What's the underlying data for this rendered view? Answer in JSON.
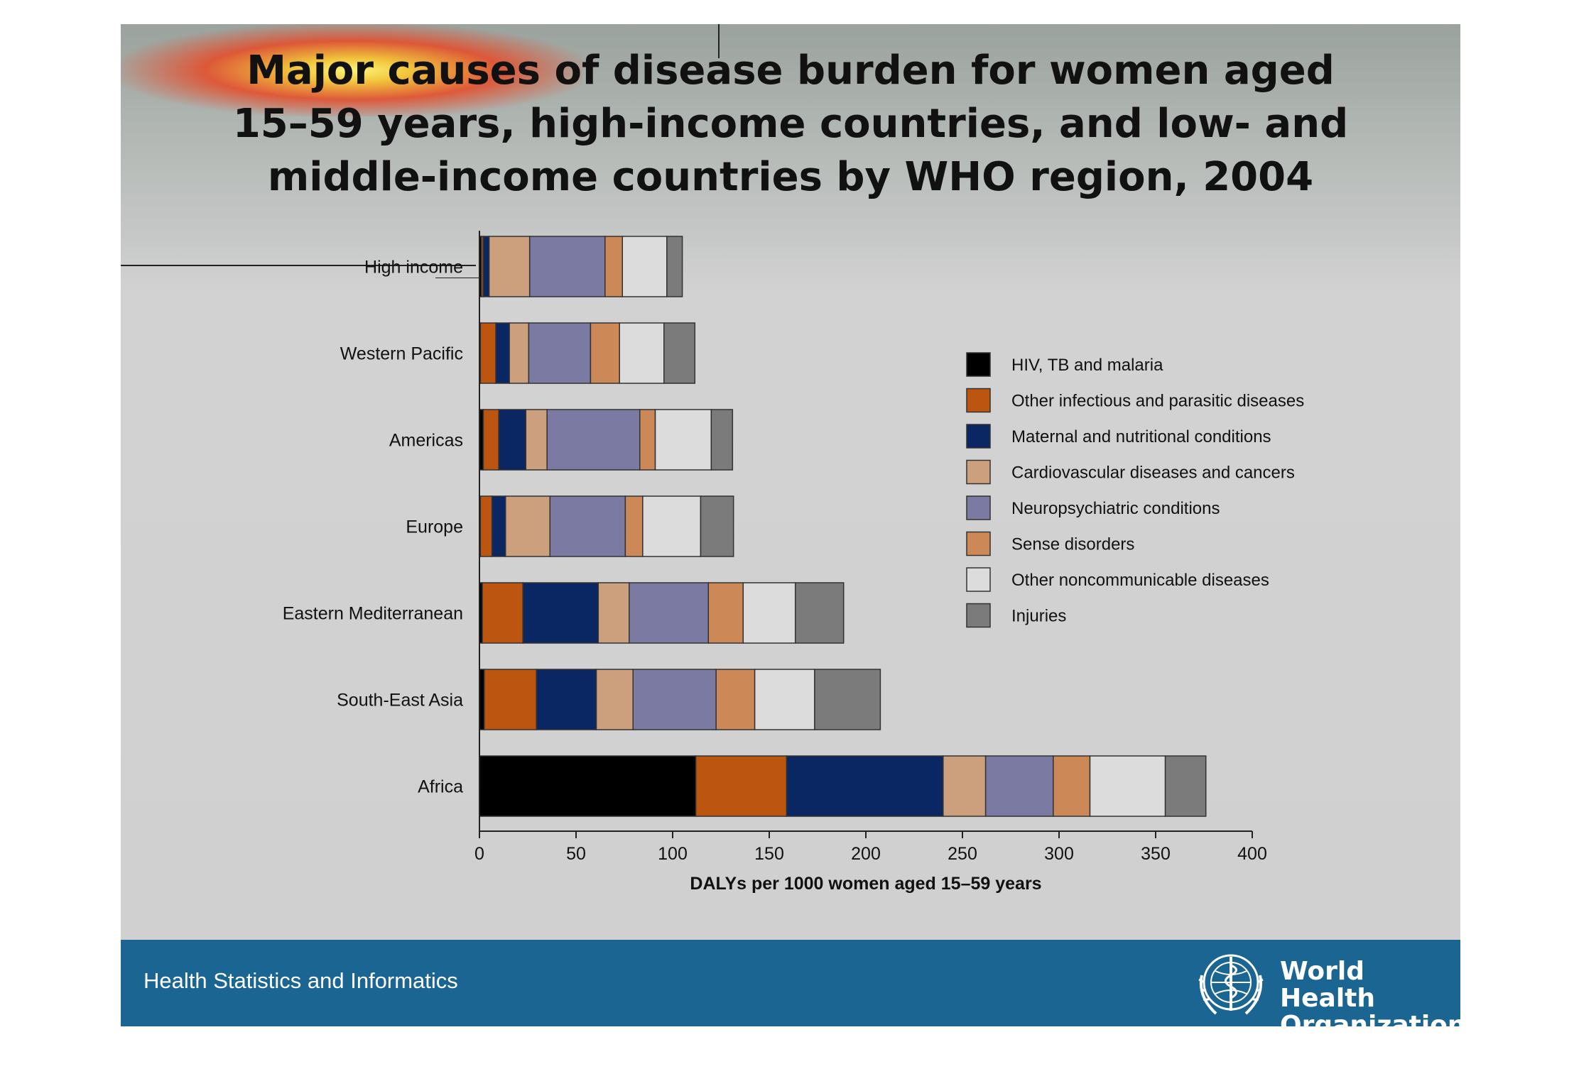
{
  "title": {
    "line1": "Major causes of disease burden for women aged",
    "line2": "15–59 years, high-income countries, and low- and",
    "line3": "middle-income countries by WHO region, 2004"
  },
  "footer": {
    "left_text": "Health Statistics and Informatics",
    "org_line1": "World Health",
    "org_line2": "Organization",
    "logo_icon": "who-emblem-icon",
    "background_color": "#1b6592"
  },
  "chart_data": {
    "type": "bar",
    "orientation": "horizontal",
    "stacked": true,
    "title": "",
    "xlabel": "DALYs per 1000 women aged 15–59 years",
    "ylabel": "",
    "xlim": [
      0,
      400
    ],
    "xticks": [
      0,
      50,
      100,
      150,
      200,
      250,
      300,
      350,
      400
    ],
    "grid": false,
    "legend_position": "right",
    "categories": [
      "High income",
      "Western Pacific",
      "Americas",
      "Europe",
      "Eastern Mediterranean",
      "South-East Asia",
      "Africa"
    ],
    "series": [
      {
        "name": "HIV, TB and malaria",
        "color": "#000000",
        "values": [
          1,
          0.5,
          2,
          0.5,
          1.5,
          2.5,
          112
        ]
      },
      {
        "name": "Other infectious and parasitic diseases",
        "color": "#bb5510",
        "values": [
          1,
          8,
          8,
          6,
          21,
          27,
          47
        ]
      },
      {
        "name": "Maternal and nutritional conditions",
        "color": "#0a2663",
        "values": [
          3,
          7,
          14,
          7,
          39,
          31,
          81
        ]
      },
      {
        "name": "Cardiovascular diseases and cancers",
        "color": "#cc9f7d",
        "values": [
          21,
          10,
          11,
          23,
          16,
          19,
          22
        ]
      },
      {
        "name": "Neuropsychiatric conditions",
        "color": "#7a7aa2",
        "values": [
          39,
          32,
          48,
          39,
          41,
          43,
          35
        ]
      },
      {
        "name": "Sense disorders",
        "color": "#cc8957",
        "values": [
          9,
          15,
          8,
          9,
          18,
          20,
          19
        ]
      },
      {
        "name": "Other noncommunicable diseases",
        "color": "#dcdcdc",
        "values": [
          23,
          23,
          29,
          30,
          27,
          31,
          39
        ]
      },
      {
        "name": "Injuries",
        "color": "#7b7b7b",
        "values": [
          8,
          16,
          11,
          17,
          25,
          34,
          21
        ]
      }
    ]
  }
}
